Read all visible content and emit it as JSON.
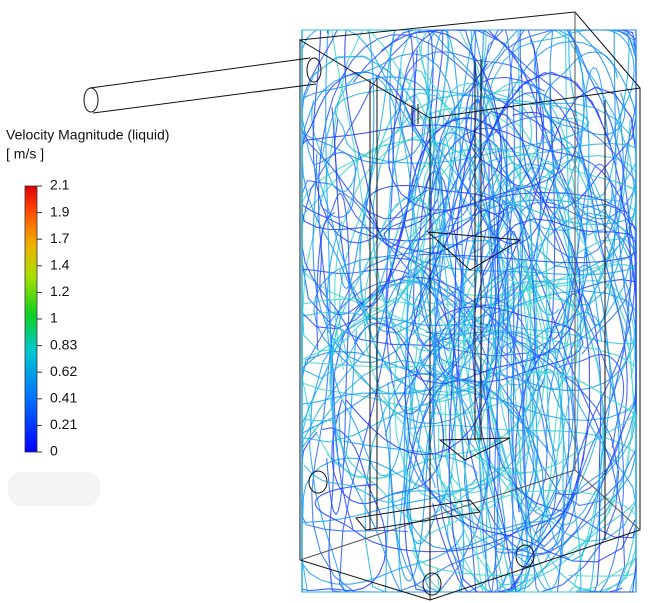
{
  "legend": {
    "title": "Velocity Magnitude (liquid)",
    "units": "[ m/s ]",
    "ticks": [
      2.1,
      1.9,
      1.7,
      1.4,
      1.2,
      1,
      0.83,
      0.62,
      0.41,
      0.21,
      0
    ]
  }
}
